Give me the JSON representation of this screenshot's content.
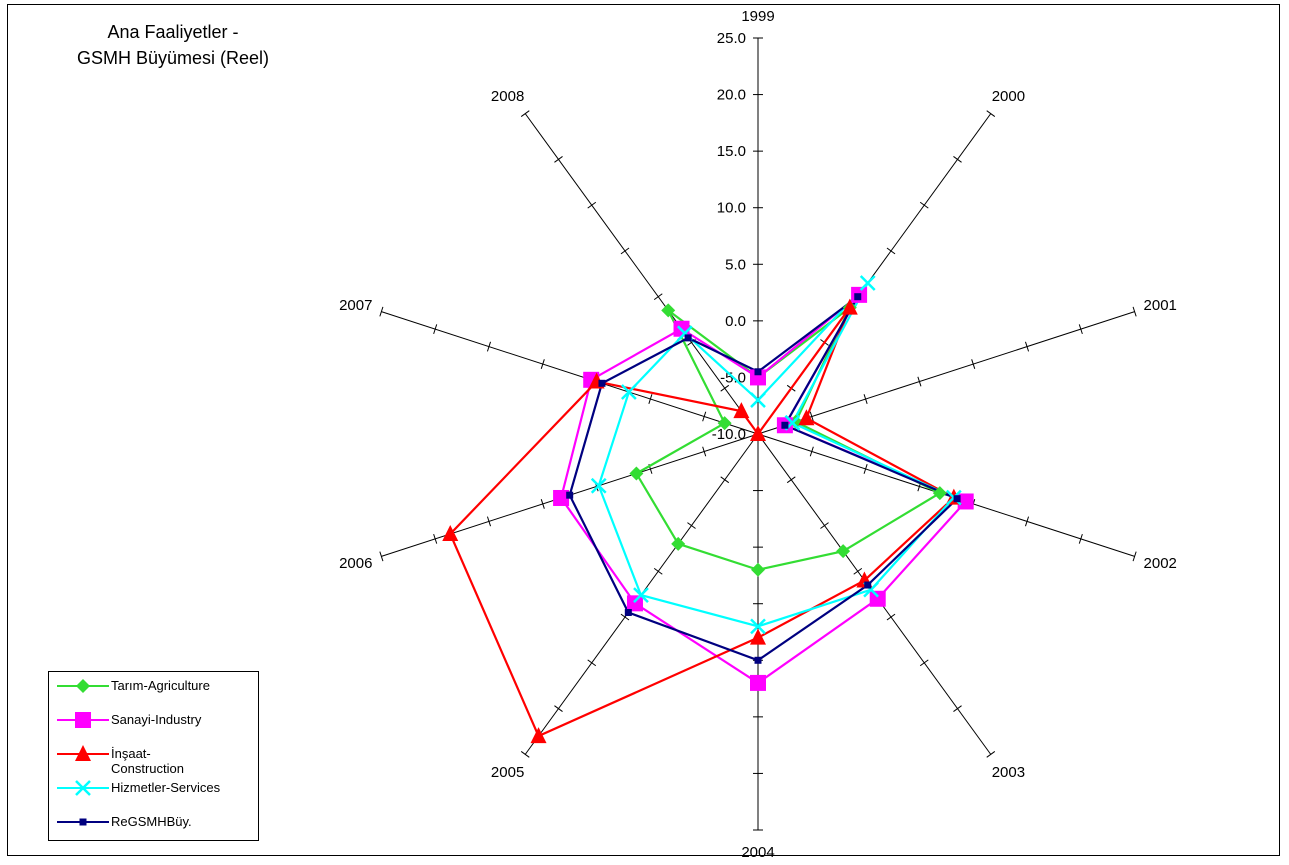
{
  "title_lines": [
    "Ana Faaliyetler -",
    "GSMH Büyümesi (Reel)"
  ],
  "chart_data": {
    "type": "radar",
    "title": "Ana Faaliyetler - GSMH Büyümesi (Reel)",
    "categories": [
      "1999",
      "2000",
      "2001",
      "2002",
      "2003",
      "2004",
      "2005",
      "2006",
      "2007",
      "2008"
    ],
    "rlim": [
      -10,
      25
    ],
    "ticks": [
      25,
      20,
      15,
      10,
      5,
      0,
      -5,
      -10
    ],
    "tick_labels": [
      "25.0",
      "20.0",
      "15.0",
      "10.0",
      "5.0",
      "0.0",
      "-5.0",
      "-10.0"
    ],
    "legend_position": "bottom-left",
    "series": [
      {
        "name": "Tarım-Agriculture",
        "color": "#33dd33",
        "marker": "diamond",
        "values": [
          -5.0,
          3.8,
          -6.5,
          6.9,
          2.8,
          2.0,
          2.0,
          1.3,
          -6.9,
          3.5
        ]
      },
      {
        "name": "Sanayi-Industry",
        "color": "#ff00ff",
        "marker": "square",
        "values": [
          -5.0,
          5.2,
          -7.5,
          9.3,
          8.0,
          12.0,
          8.5,
          8.3,
          5.5,
          1.5
        ]
      },
      {
        "name": "İnşaat-Construction",
        "color": "#ff0000",
        "marker": "triangle",
        "values": [
          -10.0,
          3.8,
          -5.5,
          8.2,
          6.0,
          8.0,
          23.0,
          18.6,
          5.0,
          -7.5
        ]
      },
      {
        "name": "Hizmetler-Services",
        "color": "#00ffff",
        "marker": "x",
        "values": [
          -7.0,
          6.5,
          -6.8,
          8.2,
          7.0,
          7.0,
          7.6,
          4.8,
          2.0,
          1.0
        ]
      },
      {
        "name": "ReGSMHBüy.",
        "color": "#000080",
        "marker": "small-square",
        "values": [
          -4.5,
          5.0,
          -7.5,
          8.5,
          6.5,
          10.0,
          9.5,
          7.5,
          4.5,
          0.5
        ]
      }
    ]
  },
  "legend": [
    {
      "label": "Tarım-Agriculture"
    },
    {
      "label": "Sanayi-Industry"
    },
    {
      "label": "İnşaat-\nConstruction"
    },
    {
      "label": "Hizmetler-Services"
    },
    {
      "label": "ReGSMHBüy."
    }
  ]
}
